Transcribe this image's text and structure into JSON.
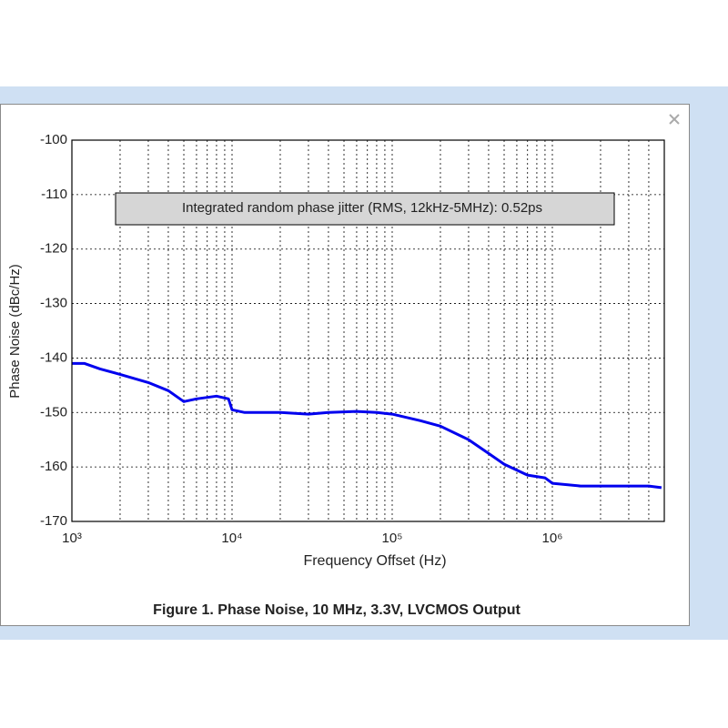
{
  "chart_data": {
    "type": "line",
    "title": "Figure 1. Phase Noise, 10 MHz, 3.3V, LVCMOS Output",
    "xlabel": "Frequency Offset (Hz)",
    "ylabel": "Phase Noise (dBc/Hz)",
    "annotation": "Integrated random phase jitter (RMS, 12kHz-5MHz): 0.52ps",
    "x_scale": "log",
    "x": [
      1000,
      1200,
      1500,
      2000,
      3000,
      4000,
      5000,
      6000,
      8000,
      9500,
      10000,
      12000,
      20000,
      30000,
      40000,
      60000,
      80000,
      100000,
      150000,
      200000,
      300000,
      400000,
      500000,
      700000,
      900000,
      1000000,
      1500000,
      2000000,
      3000000,
      4000000,
      4800000
    ],
    "values": [
      -141,
      -141,
      -142,
      -143,
      -144.5,
      -146,
      -148,
      -147.5,
      -147,
      -147.5,
      -149.5,
      -150,
      -150,
      -150.3,
      -150,
      -149.8,
      -150,
      -150.3,
      -151.5,
      -152.5,
      -155,
      -157.5,
      -159.5,
      -161.5,
      -162,
      -163,
      -163.5,
      -163.5,
      -163.5,
      -163.5,
      -163.8
    ],
    "color": "#0000ee",
    "xlim": [
      1000,
      5000000
    ],
    "xticks": [
      {
        "value": 1000,
        "label": "10³"
      },
      {
        "value": 10000,
        "label": "10⁴"
      },
      {
        "value": 100000,
        "label": "10⁵"
      },
      {
        "value": 1000000,
        "label": "10⁶"
      }
    ],
    "ylim": [
      -170,
      -100
    ],
    "yticks": [
      -170,
      -160,
      -150,
      -140,
      -130,
      -120,
      -110,
      -100
    ],
    "grid": true
  }
}
